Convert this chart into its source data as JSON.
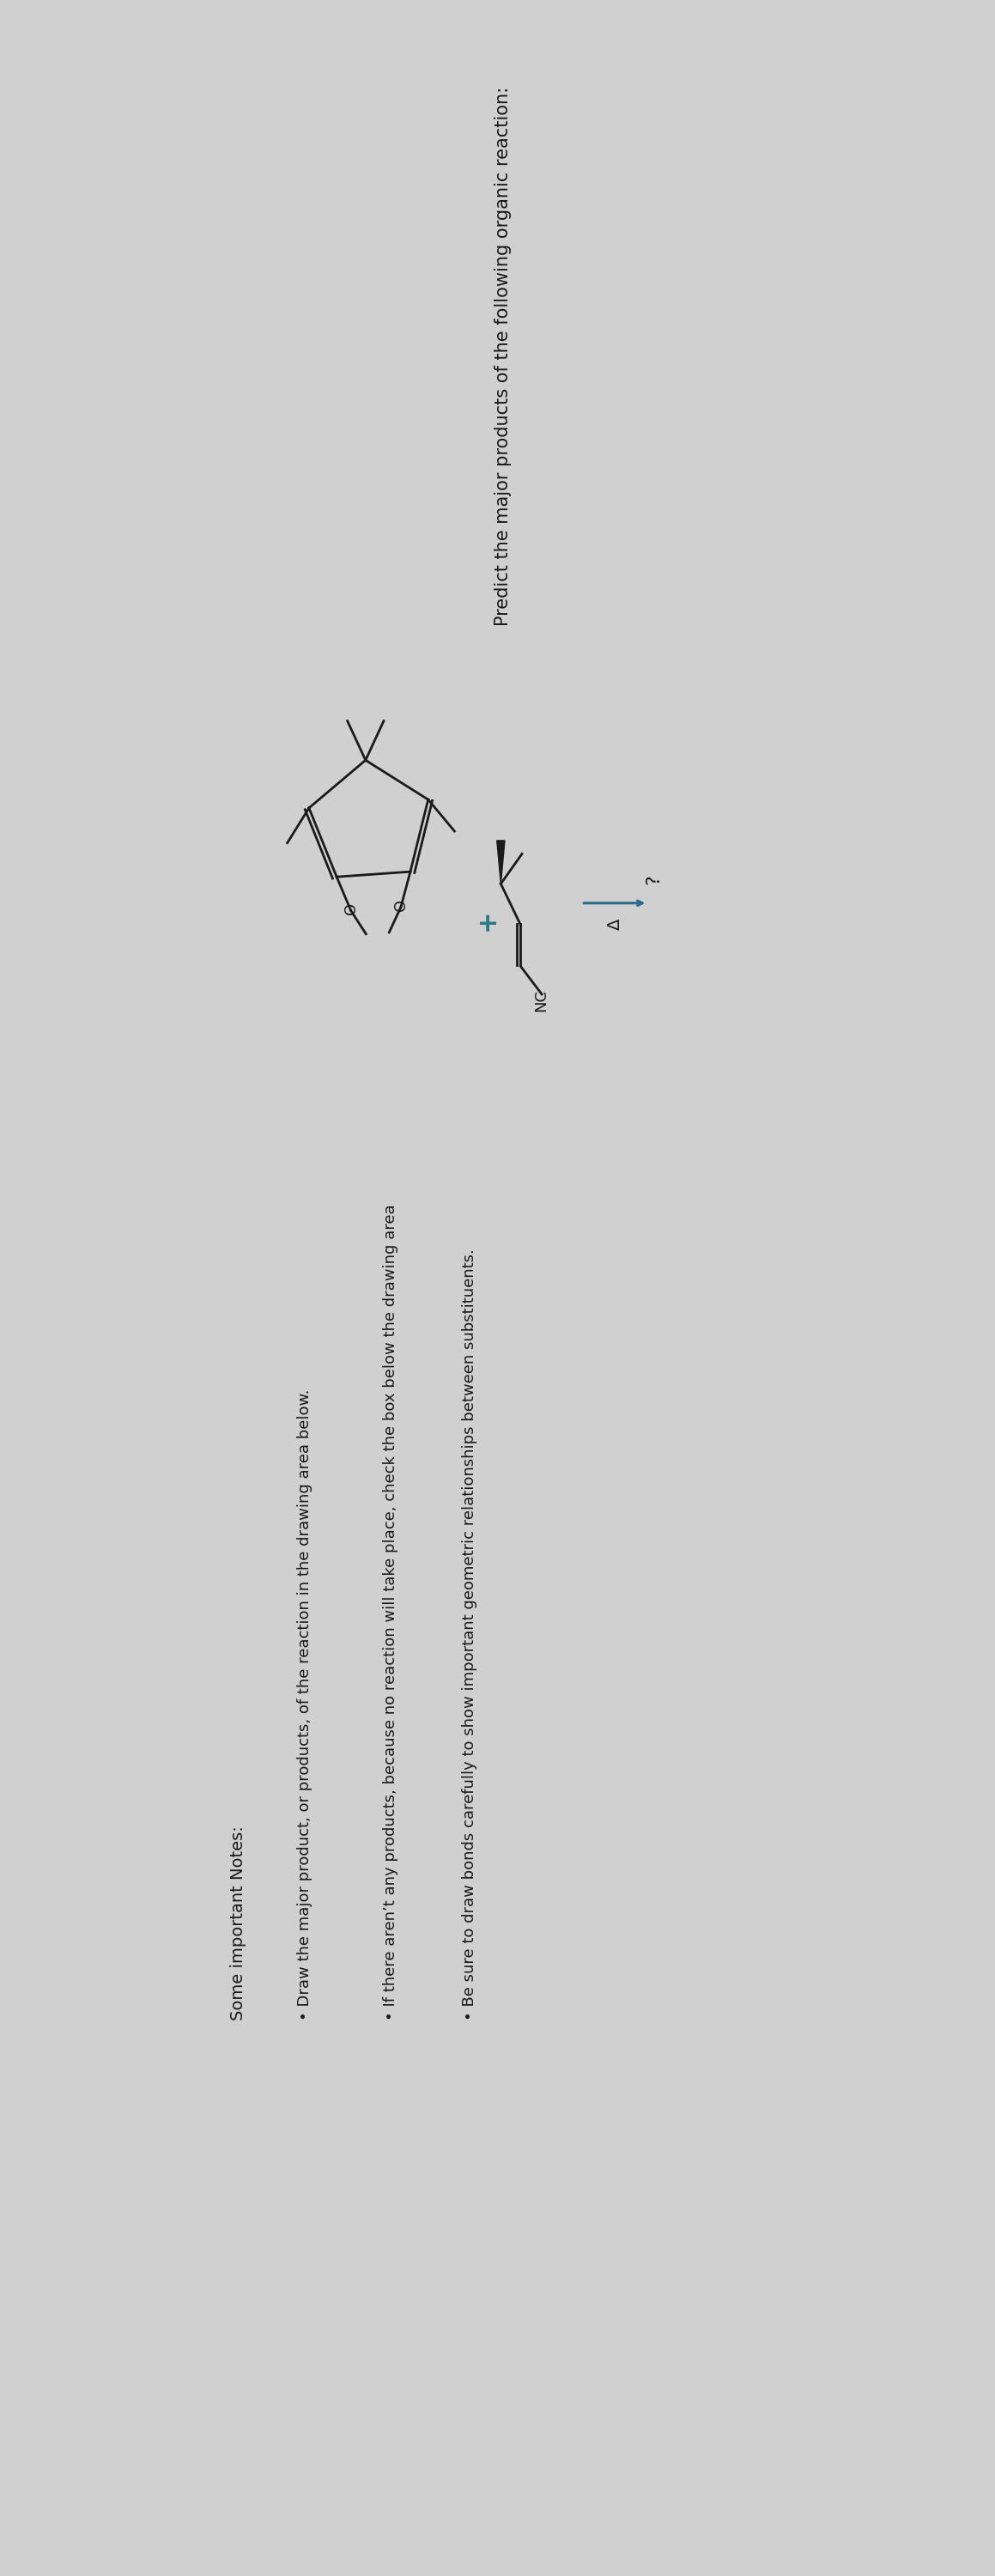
{
  "title": "Predict the major products of the following organic reaction:",
  "title_fontsize": 15,
  "background_color": "#d0d0d0",
  "text_color": "#1a1a1a",
  "notes_header": "Some important Notes:",
  "notes": [
    "Draw the major product, or products, of the reaction in the drawing area below.",
    "If there aren’t any products, because no reaction will take place, check the box below the drawing area",
    "Be sure to draw bonds carefully to show important geometric relationships between substituents."
  ],
  "plus_color": "#2a7a8a",
  "bond_color": "#1a1a1a",
  "delta_label": "Δ",
  "question_mark": "?",
  "arrow_color": "#2a6a8a"
}
